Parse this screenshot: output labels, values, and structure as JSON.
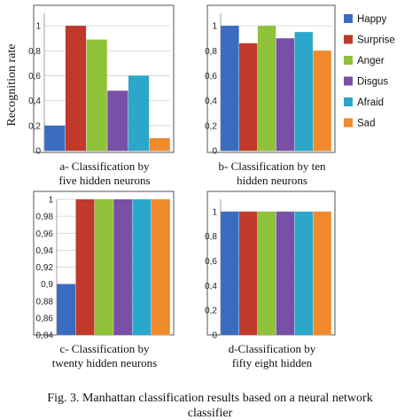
{
  "ylabel": "Recognition rate",
  "legend": {
    "placement": "right",
    "entries": [
      {
        "name": "Happy",
        "color": "#3a6cc0"
      },
      {
        "name": "Surprise",
        "color": "#c0392b"
      },
      {
        "name": "Anger",
        "color": "#8fc23a"
      },
      {
        "name": "Disgus",
        "color": "#7a4fa6"
      },
      {
        "name": "Afraid",
        "color": "#2aa7c9"
      },
      {
        "name": "Sad",
        "color": "#f08a2c"
      }
    ]
  },
  "caption": {
    "line1": "Fig. 3. Manhattan classification results based on a neural network",
    "line2": "classifier"
  },
  "chart_data": [
    {
      "type": "bar",
      "categories": [
        "Happy",
        "Surprise",
        "Anger",
        "Disgus",
        "Afraid",
        "Sad"
      ],
      "values": [
        0.2,
        1.0,
        0.89,
        0.48,
        0.6,
        0.1
      ],
      "ylim": [
        0,
        1.1
      ],
      "yticks": [
        "0",
        "0,2",
        "0,4",
        "0,6",
        "0,8",
        "1"
      ],
      "ytick_values": [
        0,
        0.2,
        0.4,
        0.6,
        0.8,
        1.0
      ],
      "subtitle": [
        "a- Classification by",
        "five hidden neurons"
      ],
      "grid": true
    },
    {
      "type": "bar",
      "categories": [
        "Happy",
        "Surprise",
        "Anger",
        "Disgus",
        "Afraid",
        "Sad"
      ],
      "values": [
        1.0,
        0.86,
        1.0,
        0.9,
        0.95,
        0.8
      ],
      "ylim": [
        0,
        1.1
      ],
      "yticks": [
        "0",
        "0,2",
        "0,4",
        "0,6",
        "0,8",
        "1"
      ],
      "ytick_values": [
        0,
        0.2,
        0.4,
        0.6,
        0.8,
        1.0
      ],
      "subtitle": [
        "b- Classification by ten",
        "hidden neurons"
      ],
      "grid": true
    },
    {
      "type": "bar",
      "categories": [
        "Happy",
        "Surprise",
        "Anger",
        "Disgus",
        "Afraid",
        "Sad"
      ],
      "values": [
        0.9,
        1.0,
        1.0,
        1.0,
        1.0,
        1.0
      ],
      "ylim": [
        0.84,
        1.0
      ],
      "yticks": [
        "0,84",
        "0,86",
        "0,88",
        "0,9",
        "0,92",
        "0,94",
        "0,96",
        "0,98",
        "1"
      ],
      "ytick_values": [
        0.84,
        0.86,
        0.88,
        0.9,
        0.92,
        0.94,
        0.96,
        0.98,
        1.0
      ],
      "subtitle": [
        "c- Classification by",
        "twenty hidden neurons"
      ],
      "grid": true
    },
    {
      "type": "bar",
      "categories": [
        "Happy",
        "Surprise",
        "Anger",
        "Disgus",
        "Afraid",
        "Sad"
      ],
      "values": [
        1.0,
        1.0,
        1.0,
        1.0,
        1.0,
        1.0
      ],
      "ylim": [
        0,
        1.1
      ],
      "yticks": [
        "0",
        "0,2",
        "0,4",
        "0,6",
        "0,8",
        "1"
      ],
      "ytick_values": [
        0,
        0.2,
        0.4,
        0.6,
        0.8,
        1.0
      ],
      "subtitle": [
        "d-Classification by",
        "fifty eight hidden"
      ],
      "grid": true
    }
  ]
}
